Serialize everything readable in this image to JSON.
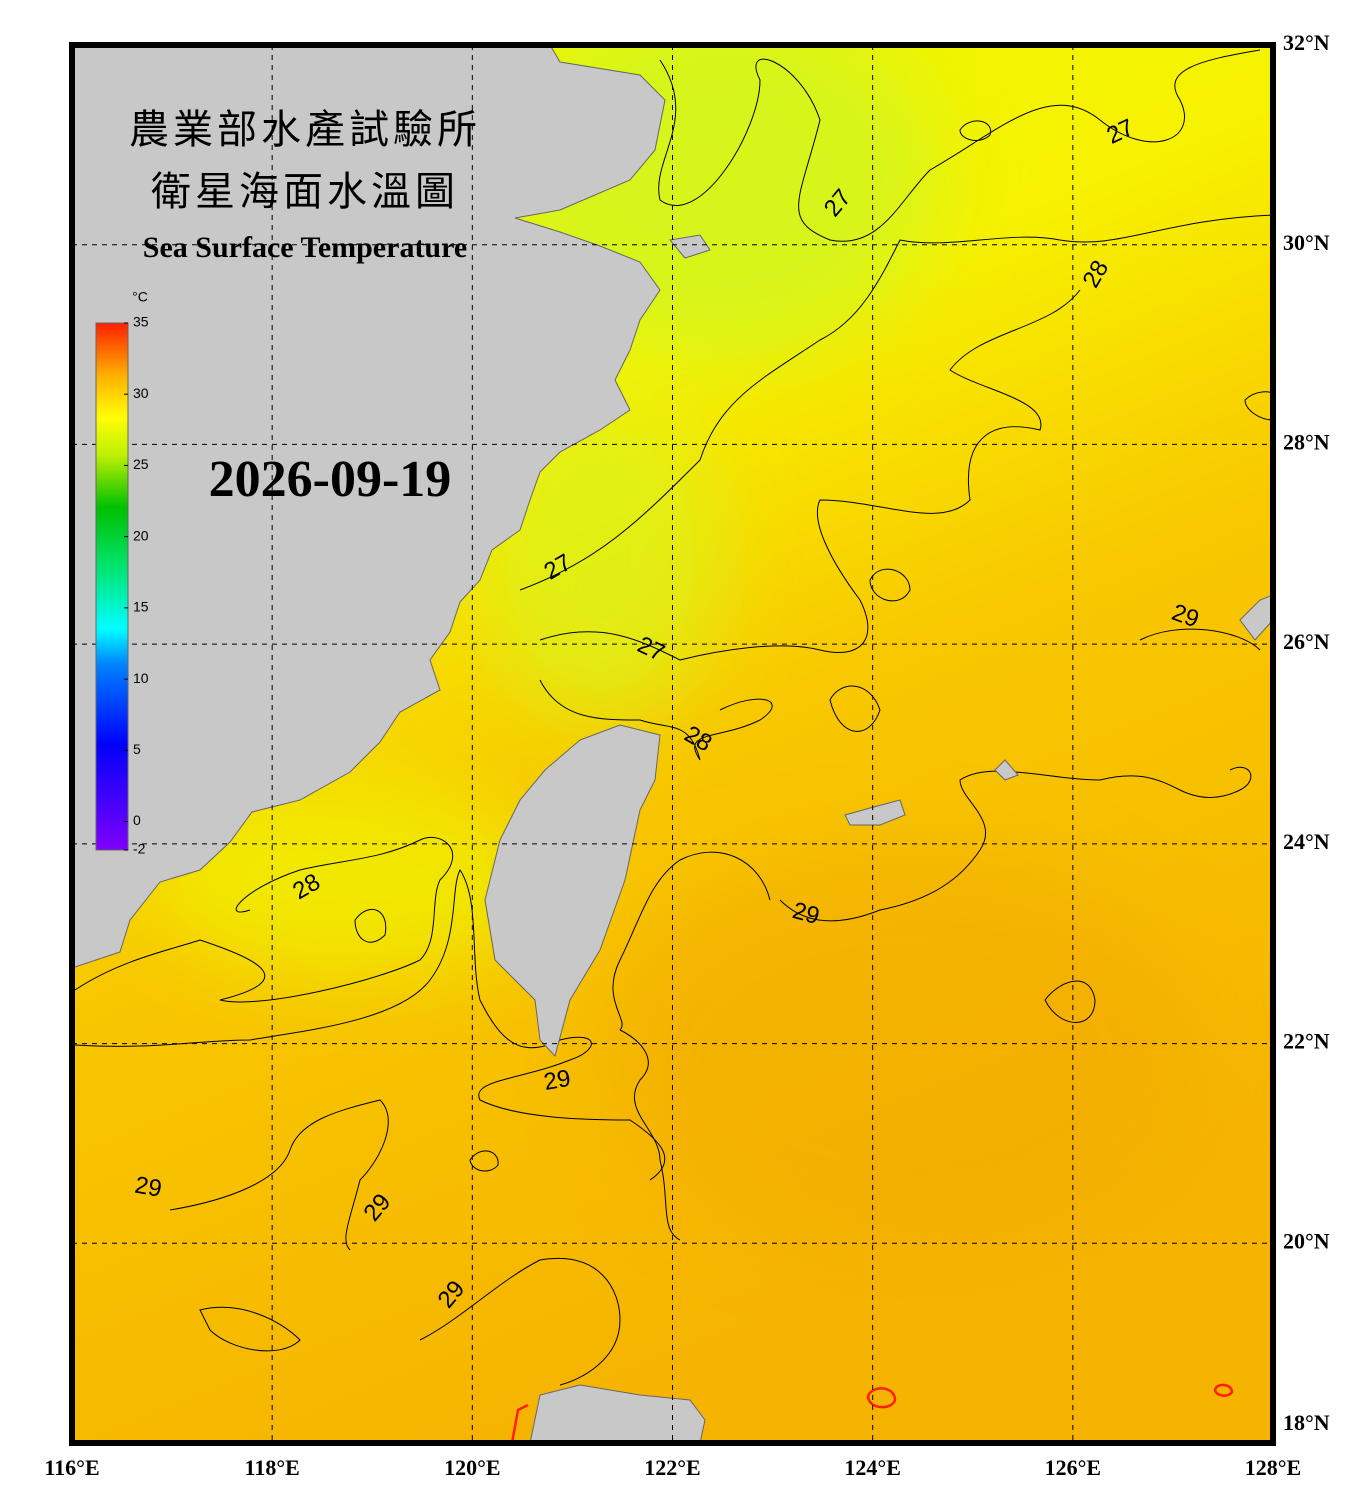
{
  "map": {
    "title_zh_1": "農業部水產試驗所",
    "title_zh_2": "衛星海面水溫圖",
    "title_en": "Sea Surface Temperature",
    "date": "2026-09-19",
    "xlim": [
      116,
      128
    ],
    "ylim": [
      18,
      32
    ],
    "xticks": [
      {
        "value": 116,
        "label": "116°E"
      },
      {
        "value": 118,
        "label": "118°E"
      },
      {
        "value": 120,
        "label": "120°E"
      },
      {
        "value": 122,
        "label": "122°E"
      },
      {
        "value": 124,
        "label": "124°E"
      },
      {
        "value": 126,
        "label": "126°E"
      },
      {
        "value": 128,
        "label": "128°E"
      }
    ],
    "yticks": [
      {
        "value": 18,
        "label": "18°N"
      },
      {
        "value": 20,
        "label": "20°N"
      },
      {
        "value": 22,
        "label": "22°N"
      },
      {
        "value": 24,
        "label": "24°N"
      },
      {
        "value": 26,
        "label": "26°N"
      },
      {
        "value": 28,
        "label": "28°N"
      },
      {
        "value": 30,
        "label": "30°N"
      },
      {
        "value": 32,
        "label": "32°N"
      }
    ],
    "grid": true,
    "colorbar": {
      "unit": "°C",
      "lim": [
        -2,
        35
      ],
      "ticks": [
        -2,
        0,
        5,
        10,
        15,
        20,
        25,
        30,
        35
      ]
    },
    "contour_labels": [
      {
        "value": 27,
        "lon": 126.48,
        "lat": 31.12
      },
      {
        "value": 27,
        "lon": 123.66,
        "lat": 30.41
      },
      {
        "value": 28,
        "lon": 126.24,
        "lat": 29.7
      },
      {
        "value": 27,
        "lon": 120.86,
        "lat": 26.76
      },
      {
        "value": 27,
        "lon": 121.78,
        "lat": 25.94
      },
      {
        "value": 28,
        "lon": 122.25,
        "lat": 25.04
      },
      {
        "value": 29,
        "lon": 127.12,
        "lat": 26.27
      },
      {
        "value": 28,
        "lon": 118.35,
        "lat": 23.56
      },
      {
        "value": 29,
        "lon": 123.33,
        "lat": 23.29
      },
      {
        "value": 29,
        "lon": 120.85,
        "lat": 21.62
      },
      {
        "value": 29,
        "lon": 116.76,
        "lat": 20.55
      },
      {
        "value": 29,
        "lon": 119.06,
        "lat": 20.35
      },
      {
        "value": 29,
        "lon": 119.8,
        "lat": 19.48
      }
    ]
  }
}
